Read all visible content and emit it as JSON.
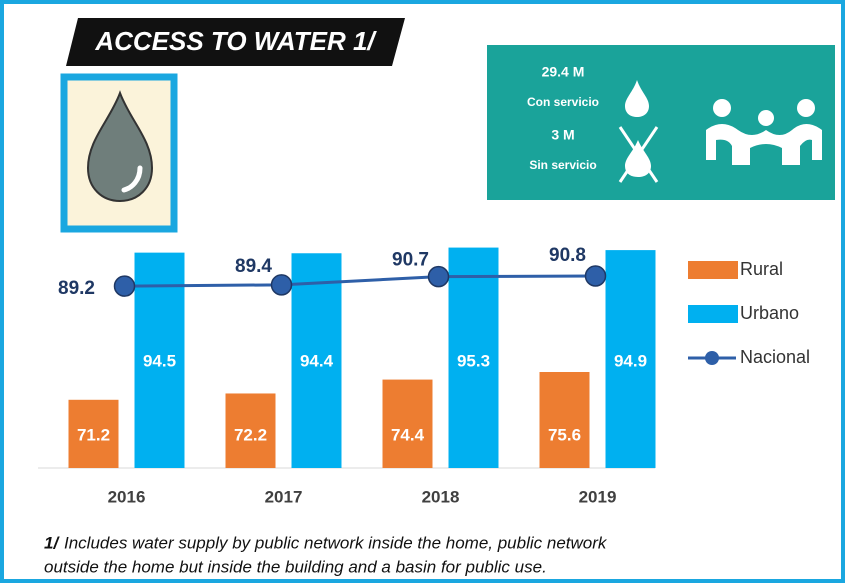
{
  "chart_data": {
    "type": "bar",
    "title": "ACCESS TO WATER 1/",
    "stats": [
      {
        "value": "29.4 M",
        "label": "Con servicio"
      },
      {
        "value": "3 M",
        "label": "Sin servicio"
      }
    ],
    "categories": [
      "2016",
      "2017",
      "2018",
      "2019"
    ],
    "series": [
      {
        "name": "Rural",
        "color": "#ed7d31",
        "values": [
          71.2,
          72.2,
          74.4,
          75.6
        ]
      },
      {
        "name": "Urbano",
        "color": "#00b0f0",
        "values": [
          94.5,
          94.4,
          95.3,
          94.9
        ]
      },
      {
        "name": "Nacional",
        "color": "#2e5fa8",
        "type": "line",
        "values": [
          89.2,
          89.4,
          90.7,
          90.8
        ]
      }
    ],
    "ylim": [
      60.4,
      96.5
    ],
    "grid": false,
    "legend": "right",
    "footnote": {
      "marker": "1/",
      "lines": [
        "Includes water supply by public network inside the home, public network",
        "outside the home but inside the building and a basin for public use."
      ]
    }
  }
}
